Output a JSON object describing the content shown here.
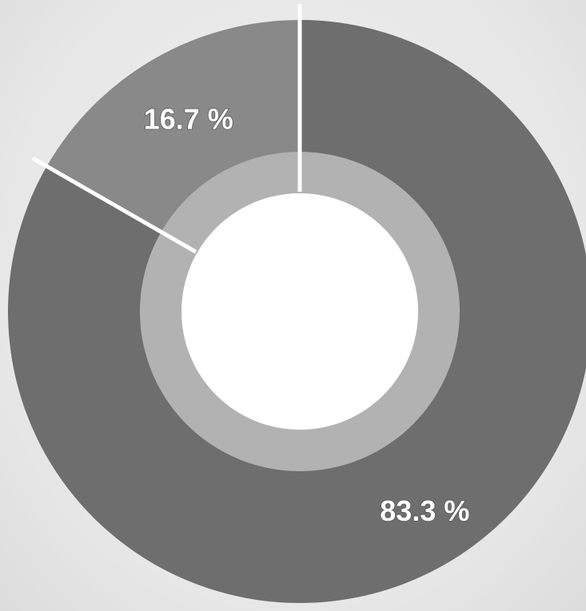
{
  "chart_data": {
    "type": "pie",
    "variant": "donut",
    "slices": [
      {
        "value": 83.3,
        "label": "83.3 %",
        "color": "#6e6e6e"
      },
      {
        "value": 16.7,
        "label": "16.7 %",
        "color": "#898989"
      }
    ],
    "inner_ring": {
      "color": "#b2b2b2",
      "note_visible": false
    },
    "separator_color": "#ffffff",
    "center_color": "#ffffff",
    "legend": "none"
  }
}
